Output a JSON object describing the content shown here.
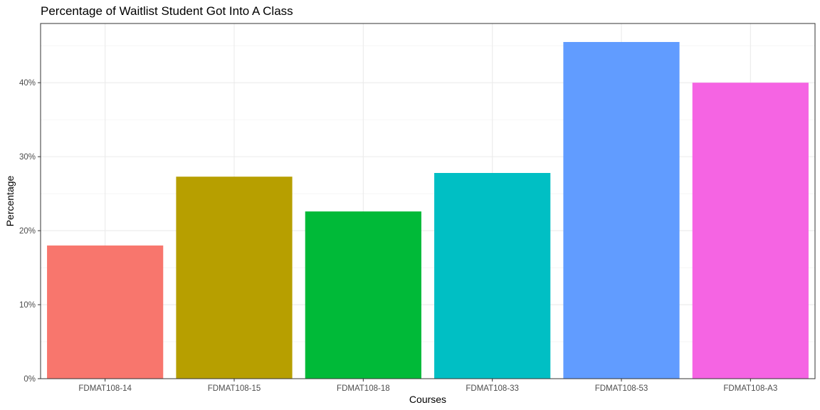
{
  "chart_data": {
    "type": "bar",
    "title": "Percentage of Waitlist Student Got Into A Class",
    "xlabel": "Courses",
    "ylabel": "Percentage",
    "categories": [
      "FDMAT108-14",
      "FDMAT108-15",
      "FDMAT108-18",
      "FDMAT108-33",
      "FDMAT108-53",
      "FDMAT108-A3"
    ],
    "values": [
      0.18,
      0.273,
      0.226,
      0.278,
      0.455,
      0.4
    ],
    "colors": [
      "#F8766D",
      "#B79F00",
      "#00BA38",
      "#00BFC4",
      "#619CFF",
      "#F564E3"
    ],
    "ylim": [
      0,
      0.48
    ],
    "yticks": [
      0,
      0.1,
      0.2,
      0.3,
      0.4
    ],
    "ytick_labels": [
      "0%",
      "10%",
      "20%",
      "30%",
      "40%"
    ],
    "grid": true,
    "legend": "none"
  }
}
